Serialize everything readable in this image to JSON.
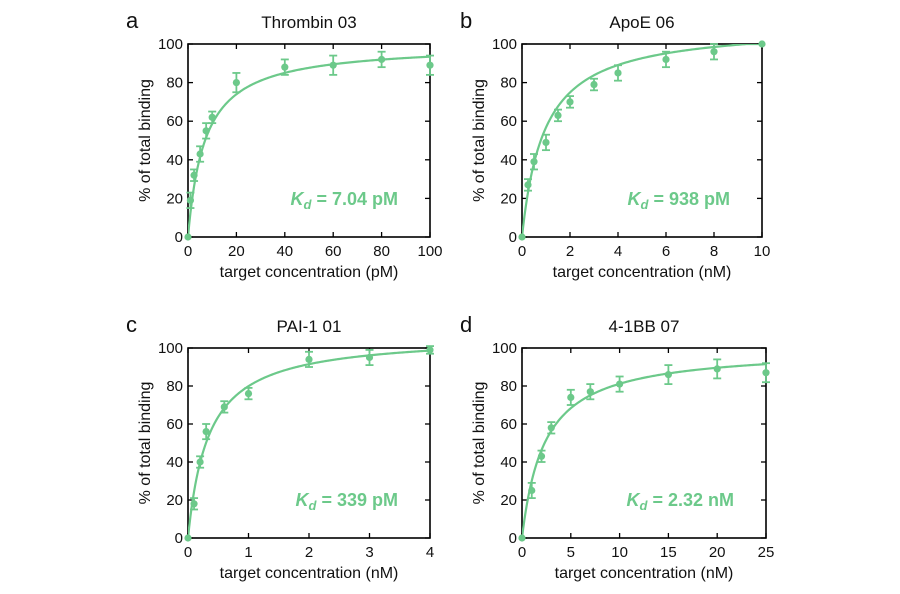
{
  "figure": {
    "accent_color": "#6cc98a",
    "ylabel": "% of total binding",
    "kd_symbol": "K",
    "kd_subscript": "d",
    "kd_eq": " = "
  },
  "chart_data": [
    {
      "type": "scatter",
      "panel_label": "a",
      "title": "Thrombin 03",
      "xlabel": "target concentration (pM)",
      "ylabel": "% of total binding",
      "xlim": [
        0,
        100
      ],
      "ylim": [
        0,
        100
      ],
      "xticks": [
        0,
        20,
        40,
        60,
        80,
        100
      ],
      "xtick_labels": [
        "0",
        "20",
        "40",
        "60",
        "80",
        "100"
      ],
      "yticks": [
        0,
        20,
        40,
        60,
        80,
        100
      ],
      "ytick_labels": [
        "0",
        "20",
        "40",
        "60",
        "80",
        "100"
      ],
      "kd_value": "7.04 pM",
      "fit": {
        "model": "Bmax*x/(Kd+x)",
        "Bmax": 100,
        "Kd": 7.04
      },
      "points": [
        {
          "x": 0,
          "y": 0,
          "err": 0
        },
        {
          "x": 1,
          "y": 19,
          "err": 4
        },
        {
          "x": 2.5,
          "y": 32,
          "err": 3
        },
        {
          "x": 5,
          "y": 43,
          "err": 4
        },
        {
          "x": 7.5,
          "y": 55,
          "err": 4
        },
        {
          "x": 10,
          "y": 62,
          "err": 3
        },
        {
          "x": 20,
          "y": 80,
          "err": 5
        },
        {
          "x": 40,
          "y": 88,
          "err": 4
        },
        {
          "x": 60,
          "y": 89,
          "err": 5
        },
        {
          "x": 80,
          "y": 92,
          "err": 4
        },
        {
          "x": 100,
          "y": 89,
          "err": 5
        }
      ]
    },
    {
      "type": "scatter",
      "panel_label": "b",
      "title": "ApoE 06",
      "xlabel": "target concentration (nM)",
      "ylabel": "% of total binding",
      "xlim": [
        0,
        10
      ],
      "ylim": [
        0,
        100
      ],
      "xticks": [
        0,
        2,
        4,
        6,
        8,
        10
      ],
      "xtick_labels": [
        "0",
        "2",
        "4",
        "6",
        "8",
        "10"
      ],
      "yticks": [
        0,
        20,
        40,
        60,
        80,
        100
      ],
      "ytick_labels": [
        "0",
        "20",
        "40",
        "60",
        "80",
        "100"
      ],
      "kd_value": "938 pM",
      "fit": {
        "model": "Bmax*x/(Kd+x)",
        "Bmax": 110,
        "Kd": 0.938
      },
      "points": [
        {
          "x": 0,
          "y": 0,
          "err": 0
        },
        {
          "x": 0.25,
          "y": 27,
          "err": 3
        },
        {
          "x": 0.5,
          "y": 39,
          "err": 4
        },
        {
          "x": 1,
          "y": 49,
          "err": 4
        },
        {
          "x": 1.5,
          "y": 63,
          "err": 3
        },
        {
          "x": 2,
          "y": 70,
          "err": 3
        },
        {
          "x": 3,
          "y": 79,
          "err": 3
        },
        {
          "x": 4,
          "y": 85,
          "err": 4
        },
        {
          "x": 6,
          "y": 92,
          "err": 4
        },
        {
          "x": 8,
          "y": 96,
          "err": 4
        },
        {
          "x": 10,
          "y": 100,
          "err": 0
        }
      ]
    },
    {
      "type": "scatter",
      "panel_label": "c",
      "title": "PAI-1 01",
      "xlabel": "target concentration (nM)",
      "ylabel": "% of total binding",
      "xlim": [
        0,
        4
      ],
      "ylim": [
        0,
        100
      ],
      "xticks": [
        0,
        1,
        2,
        3,
        4
      ],
      "xtick_labels": [
        "0",
        "1",
        "2",
        "3",
        "4"
      ],
      "yticks": [
        0,
        20,
        40,
        60,
        80,
        100
      ],
      "ytick_labels": [
        "0",
        "20",
        "40",
        "60",
        "80",
        "100"
      ],
      "kd_value": "339 pM",
      "fit": {
        "model": "Bmax*x/(Kd+x)",
        "Bmax": 107,
        "Kd": 0.339
      },
      "points": [
        {
          "x": 0,
          "y": 0,
          "err": 0
        },
        {
          "x": 0.1,
          "y": 18,
          "err": 3
        },
        {
          "x": 0.2,
          "y": 40,
          "err": 3
        },
        {
          "x": 0.3,
          "y": 56,
          "err": 4
        },
        {
          "x": 0.6,
          "y": 69,
          "err": 3
        },
        {
          "x": 1,
          "y": 76,
          "err": 3
        },
        {
          "x": 2,
          "y": 94,
          "err": 4
        },
        {
          "x": 3,
          "y": 95,
          "err": 4
        },
        {
          "x": 4,
          "y": 99,
          "err": 2
        }
      ]
    },
    {
      "type": "scatter",
      "panel_label": "d",
      "title": "4-1BB 07",
      "xlabel": "target concentration (nM)",
      "ylabel": "% of total binding",
      "xlim": [
        0,
        25
      ],
      "ylim": [
        0,
        100
      ],
      "xticks": [
        0,
        5,
        10,
        15,
        20,
        25
      ],
      "xtick_labels": [
        "0",
        "5",
        "10",
        "15",
        "20",
        "25"
      ],
      "yticks": [
        0,
        20,
        40,
        60,
        80,
        100
      ],
      "ytick_labels": [
        "0",
        "20",
        "40",
        "60",
        "80",
        "100"
      ],
      "kd_value": "2.32 nM",
      "fit": {
        "model": "Bmax*x/(Kd+x)",
        "Bmax": 100,
        "Kd": 2.32
      },
      "points": [
        {
          "x": 0,
          "y": 0,
          "err": 0
        },
        {
          "x": 1,
          "y": 25,
          "err": 4
        },
        {
          "x": 2,
          "y": 43,
          "err": 3
        },
        {
          "x": 3,
          "y": 58,
          "err": 3
        },
        {
          "x": 5,
          "y": 74,
          "err": 4
        },
        {
          "x": 7,
          "y": 77,
          "err": 4
        },
        {
          "x": 10,
          "y": 81,
          "err": 4
        },
        {
          "x": 15,
          "y": 86,
          "err": 5
        },
        {
          "x": 20,
          "y": 89,
          "err": 5
        },
        {
          "x": 25,
          "y": 87,
          "err": 5
        }
      ]
    }
  ]
}
